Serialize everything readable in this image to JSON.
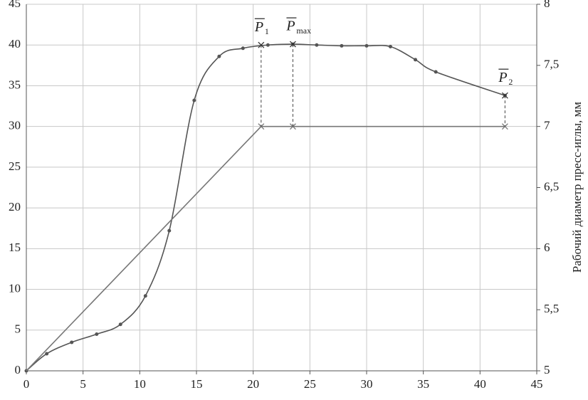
{
  "chart_data": {
    "type": "line",
    "y2label": "Рабочий диаметр пресс-иглы, мм",
    "xlim": [
      0,
      45
    ],
    "xticks": [
      0,
      5,
      10,
      15,
      20,
      25,
      30,
      35,
      40,
      45
    ],
    "ylim": [
      0,
      45
    ],
    "yticks": [
      0,
      5,
      10,
      15,
      20,
      25,
      30,
      35,
      40,
      45
    ],
    "y2lim": [
      5,
      8
    ],
    "y2ticks": [
      5,
      {
        "value": 5.5,
        "label": "5,5"
      },
      6,
      {
        "value": 6.5,
        "label": "6,5"
      },
      7,
      {
        "value": 7.5,
        "label": "7,5"
      },
      8
    ],
    "grid": true,
    "series": [
      {
        "color": "#555555",
        "smooth": true,
        "markers": "dot",
        "x": [
          0,
          1.8,
          4,
          6.2,
          8.3,
          10.5,
          12.6,
          14.8,
          17,
          19.1,
          21.3,
          23.5,
          25.6,
          27.8,
          30,
          32.1,
          34.3,
          36.1,
          42.2
        ],
        "values": [
          0,
          2.1,
          3.5,
          4.5,
          5.7,
          9.2,
          17.2,
          33.2,
          38.6,
          39.6,
          40,
          40.1,
          40,
          39.9,
          39.9,
          39.8,
          38.2,
          36.7,
          33.8
        ]
      },
      {
        "color": "#777777",
        "smooth": false,
        "markers": "cross",
        "axis": "y2",
        "x": [
          0,
          20.7,
          23.5,
          42.2
        ],
        "values": [
          5,
          7,
          7,
          7
        ]
      }
    ],
    "annotations": [
      {
        "text": "P",
        "sub": "1",
        "x": 20.7,
        "y": 40
      },
      {
        "text": "P",
        "sub": "max",
        "x": 23.5,
        "y": 40.1
      },
      {
        "text": "P",
        "sub": "2",
        "x": 42.2,
        "y": 33.8
      }
    ]
  }
}
